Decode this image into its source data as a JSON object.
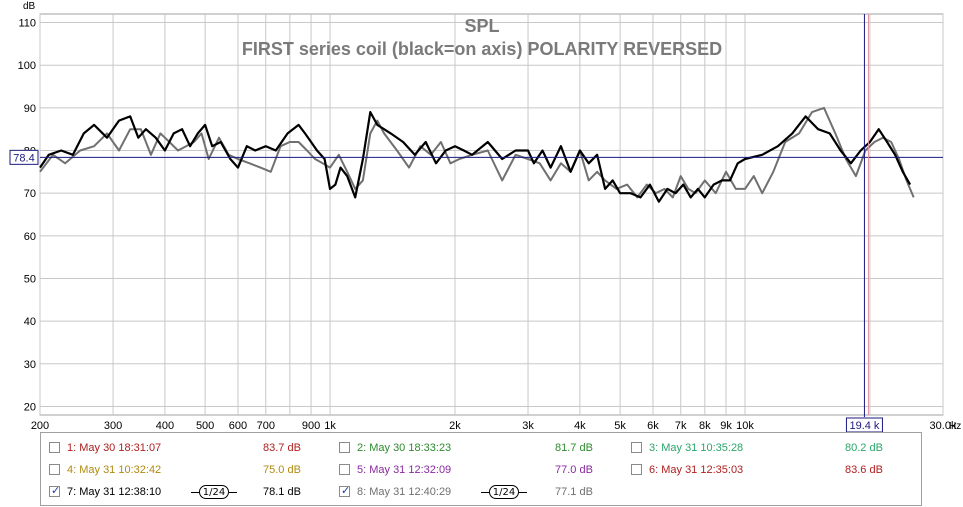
{
  "chart_data": {
    "type": "line",
    "title": "SPL",
    "subtitle": "FIRST series coil (black=on axis) POLARITY REVERSED",
    "yunit": "dB",
    "xunit": "Hz",
    "xscale": "log",
    "xlim": [
      200,
      30000
    ],
    "ylim": [
      18,
      112
    ],
    "yticks": [
      20,
      30,
      40,
      50,
      60,
      70,
      80,
      90,
      100,
      110
    ],
    "xticks_labeled": [
      {
        "v": 200,
        "t": "200"
      },
      {
        "v": 300,
        "t": "300"
      },
      {
        "v": 400,
        "t": "400"
      },
      {
        "v": 500,
        "t": "500"
      },
      {
        "v": 600,
        "t": "600"
      },
      {
        "v": 700,
        "t": "700"
      },
      {
        "v": 900,
        "t": "900"
      },
      {
        "v": 1000,
        "t": "1k"
      },
      {
        "v": 2000,
        "t": "2k"
      },
      {
        "v": 3000,
        "t": "3k"
      },
      {
        "v": 4000,
        "t": "4k"
      },
      {
        "v": 5000,
        "t": "5k"
      },
      {
        "v": 6000,
        "t": "6k"
      },
      {
        "v": 7000,
        "t": "7k"
      },
      {
        "v": 8000,
        "t": "8k"
      },
      {
        "v": 9000,
        "t": "9k"
      },
      {
        "v": 10000,
        "t": "10k"
      },
      {
        "v": 30000,
        "t": "30.0k"
      }
    ],
    "xgrid": [
      200,
      300,
      400,
      500,
      600,
      700,
      800,
      900,
      1000,
      2000,
      3000,
      4000,
      5000,
      6000,
      7000,
      8000,
      9000,
      10000,
      20000,
      30000
    ],
    "grid": true,
    "cursor": {
      "x": 19400,
      "y": 78.4,
      "x_label": "19.4 k",
      "y_label": "78.4"
    },
    "series": [
      {
        "name": "7: May 31 12:38:10",
        "color": "#000000",
        "x": [
          200,
          210,
          225,
          240,
          255,
          270,
          290,
          310,
          330,
          345,
          360,
          380,
          400,
          420,
          440,
          460,
          480,
          500,
          520,
          545,
          575,
          600,
          630,
          660,
          700,
          740,
          790,
          840,
          870,
          900,
          930,
          970,
          1000,
          1030,
          1060,
          1100,
          1150,
          1200,
          1250,
          1300,
          1400,
          1500,
          1600,
          1700,
          1800,
          1900,
          2000,
          2100,
          2200,
          2400,
          2600,
          2800,
          3000,
          3100,
          3250,
          3400,
          3600,
          3800,
          4000,
          4200,
          4400,
          4600,
          4800,
          5000,
          5300,
          5600,
          5900,
          6200,
          6500,
          6800,
          7100,
          7400,
          7700,
          8000,
          8400,
          8800,
          9200,
          9600,
          10000,
          11000,
          12000,
          13000,
          14000,
          15000,
          16000,
          17000,
          18000,
          19000,
          20000,
          21000,
          22000,
          23000,
          24000,
          25000
        ],
        "y": [
          76,
          79,
          80,
          79,
          84,
          86,
          83,
          87,
          88,
          83,
          85,
          83,
          80,
          84,
          85,
          81,
          84,
          86,
          81,
          82,
          78,
          76,
          81,
          80,
          81,
          80,
          84,
          86,
          84,
          82,
          80,
          78,
          71,
          72,
          76,
          74,
          69,
          78,
          89,
          86,
          84,
          82,
          79,
          82,
          77,
          80,
          81,
          80,
          79,
          82,
          78,
          80,
          80,
          77,
          80,
          76,
          81,
          75,
          80,
          77,
          79,
          71,
          73,
          70,
          70,
          69,
          72,
          68,
          71,
          70,
          72,
          69,
          71,
          69,
          72,
          73,
          73,
          77,
          78,
          79,
          81,
          84,
          88,
          85,
          84,
          80,
          77,
          80,
          82,
          85,
          82,
          79,
          75,
          72
        ]
      },
      {
        "name": "8: May 31 12:40:29",
        "color": "#707070",
        "x": [
          200,
          215,
          230,
          250,
          270,
          290,
          310,
          330,
          350,
          370,
          390,
          410,
          430,
          450,
          470,
          490,
          510,
          540,
          570,
          600,
          640,
          680,
          720,
          760,
          800,
          840,
          880,
          920,
          960,
          1000,
          1050,
          1100,
          1150,
          1200,
          1250,
          1300,
          1350,
          1450,
          1550,
          1650,
          1750,
          1850,
          1950,
          2050,
          2200,
          2400,
          2600,
          2800,
          3000,
          3200,
          3400,
          3600,
          3800,
          4000,
          4200,
          4400,
          4600,
          4900,
          5200,
          5500,
          5800,
          6100,
          6400,
          6700,
          7000,
          7300,
          7600,
          8000,
          8500,
          9000,
          9500,
          10000,
          10500,
          11000,
          11700,
          12500,
          13500,
          14500,
          15500,
          16500,
          17500,
          18500,
          19500,
          20500,
          21500,
          22500,
          23500,
          24500,
          25500
        ],
        "y": [
          75,
          79,
          77,
          80,
          81,
          84,
          80,
          85,
          85,
          79,
          84,
          82,
          80,
          81,
          82,
          84,
          78,
          83,
          79,
          78,
          77,
          76,
          75,
          81,
          82,
          82,
          80,
          78,
          77,
          76,
          79,
          75,
          71,
          73,
          84,
          87,
          84,
          80,
          76,
          81,
          79,
          82,
          77,
          78,
          79,
          80,
          73,
          79,
          78,
          77,
          73,
          77,
          75,
          80,
          73,
          75,
          73,
          71,
          72,
          69,
          72,
          70,
          71,
          69,
          74,
          71,
          70,
          73,
          70,
          75,
          71,
          71,
          74,
          70,
          75,
          82,
          84,
          89,
          90,
          84,
          78,
          74,
          80,
          82,
          83,
          82,
          78,
          73,
          69
        ]
      }
    ]
  },
  "legend": [
    {
      "label": "1: May 30 18:31:07",
      "value": "83.7 dB",
      "color": "#b02020",
      "checked": false
    },
    {
      "label": "2: May 30 18:33:23",
      "value": "81.7 dB",
      "color": "#2e8b2e",
      "checked": false
    },
    {
      "label": "3: May 31 10:35:28",
      "value": "80.2 dB",
      "color": "#2aa66a",
      "checked": false
    },
    {
      "label": "4: May 31 10:32:42",
      "value": "75.0 dB",
      "color": "#b08a10",
      "checked": false
    },
    {
      "label": "5: May 31 12:32:09",
      "value": "77.0 dB",
      "color": "#8a2aa0",
      "checked": false
    },
    {
      "label": "6: May 31 12:35:03",
      "value": "83.6 dB",
      "color": "#b02020",
      "checked": false
    },
    {
      "label": "7: May 31 12:38:10",
      "value": "78.1 dB",
      "color": "#000000",
      "checked": true,
      "smoothing": "1/24"
    },
    {
      "label": "8: May 31 12:40:29",
      "value": "77.1 dB",
      "color": "#707070",
      "checked": true,
      "smoothing": "1/24"
    }
  ]
}
